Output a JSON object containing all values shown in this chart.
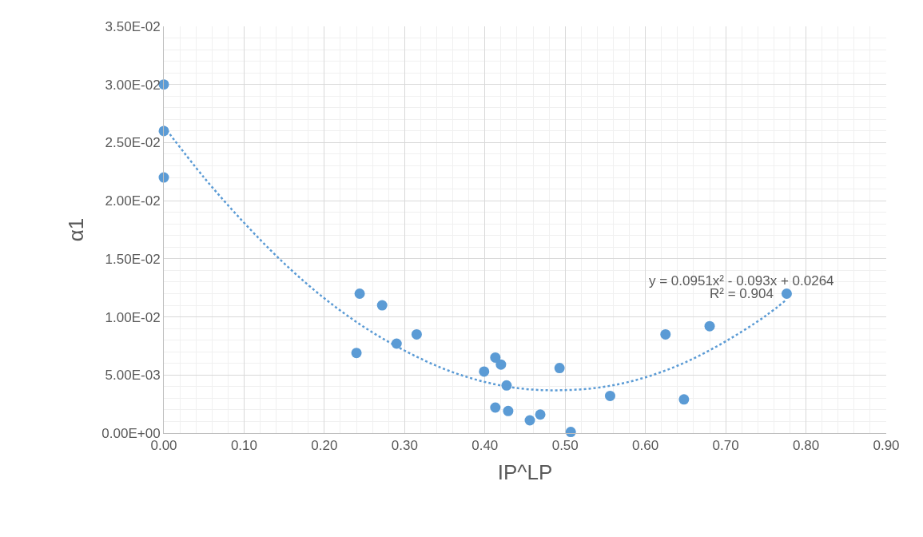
{
  "chart_data": {
    "type": "scatter",
    "xlabel": "IP^LP",
    "ylabel": "α1",
    "xlim": [
      0,
      0.9
    ],
    "xticks": [
      {
        "value": 0,
        "label": "0.00"
      },
      {
        "value": 0.1,
        "label": "0.10"
      },
      {
        "value": 0.2,
        "label": "0.20"
      },
      {
        "value": 0.3,
        "label": "0.30"
      },
      {
        "value": 0.4,
        "label": "0.40"
      },
      {
        "value": 0.5,
        "label": "0.50"
      },
      {
        "value": 0.6,
        "label": "0.60"
      },
      {
        "value": 0.7,
        "label": "0.70"
      },
      {
        "value": 0.8,
        "label": "0.80"
      },
      {
        "value": 0.9,
        "label": "0.90"
      }
    ],
    "ylim": [
      0,
      0.035
    ],
    "yticks": [
      {
        "value": 0,
        "label": "0.00E+00"
      },
      {
        "value": 0.005,
        "label": "5.00E-03"
      },
      {
        "value": 0.01,
        "label": "1.00E-02"
      },
      {
        "value": 0.015,
        "label": "1.50E-02"
      },
      {
        "value": 0.02,
        "label": "2.00E-02"
      },
      {
        "value": 0.025,
        "label": "2.50E-02"
      },
      {
        "value": 0.03,
        "label": "3.00E-02"
      },
      {
        "value": 0.035,
        "label": "3.50E-02"
      }
    ],
    "grid": true,
    "series": [
      {
        "color": "#5b9bd5",
        "marker": "circle",
        "x": [
          0,
          0,
          0,
          0.244,
          0.272,
          0.24,
          0.29,
          0.315,
          0.399,
          0.413,
          0.42,
          0.427,
          0.413,
          0.429,
          0.456,
          0.469,
          0.493,
          0.507,
          0.556,
          0.625,
          0.648,
          0.68,
          0.776
        ],
        "values": [
          0.03,
          0.026,
          0.022,
          0.012,
          0.011,
          0.0069,
          0.0077,
          0.0085,
          0.0053,
          0.0065,
          0.0059,
          0.0041,
          0.0022,
          0.0019,
          0.0011,
          0.0016,
          0.0056,
          0.0001,
          0.0032,
          0.0085,
          0.0029,
          0.0092,
          0.012
        ]
      },
      {
        "type": "line",
        "color": "#5b9bd5",
        "line_style": "dotted",
        "marker": "none",
        "x": [
          0,
          0.05,
          0.1,
          0.15,
          0.2,
          0.25,
          0.3,
          0.35,
          0.4,
          0.45,
          0.5,
          0.55,
          0.6,
          0.65,
          0.7,
          0.75,
          0.776
        ],
        "values": [
          0.0264,
          0.022,
          0.0181,
          0.0146,
          0.0116,
          0.0091,
          0.0071,
          0.0055,
          0.0044,
          0.0038,
          0.0037,
          0.004,
          0.0048,
          0.0061,
          0.0079,
          0.0101,
          0.0115
        ]
      }
    ],
    "annotations": [
      "y = 0.0951x² - 0.093x + 0.0264",
      "R² = 0.904"
    ]
  }
}
